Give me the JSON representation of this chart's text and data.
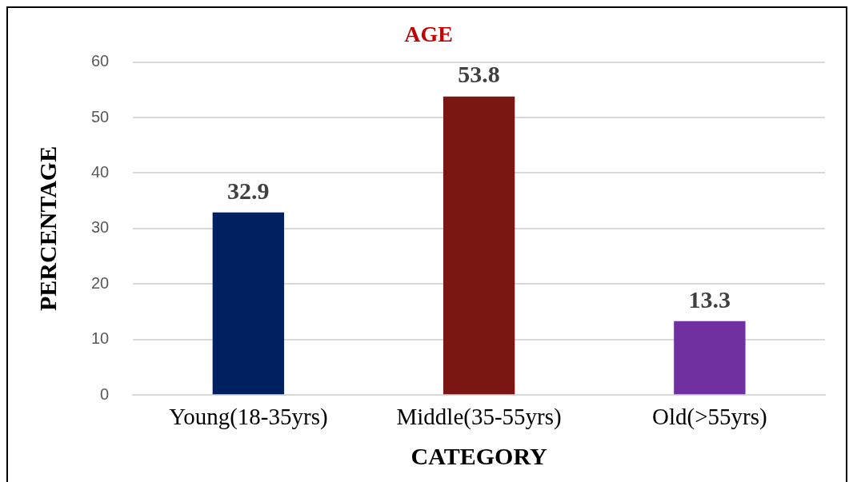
{
  "chart_data": {
    "type": "bar",
    "title": "AGE",
    "xlabel": "CATEGORY",
    "ylabel": "PERCENTAGE",
    "categories": [
      "Young(18-35yrs)",
      "Middle(35-55yrs)",
      "Old(>55yrs)"
    ],
    "values": [
      32.9,
      53.8,
      13.3
    ],
    "colors": [
      "#002060",
      "#7b1712",
      "#7030a0"
    ],
    "ylim": [
      0,
      60
    ],
    "yticks": [
      0,
      10,
      20,
      30,
      40,
      50,
      60
    ],
    "grid": "y",
    "data_labels": true,
    "legend": false
  }
}
